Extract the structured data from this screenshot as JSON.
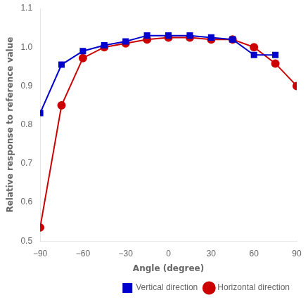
{
  "chart_data": {
    "type": "line",
    "xlabel": "Angle (degree)",
    "ylabel": "Relative response to reference value",
    "series": [
      {
        "name": "Vertical direction",
        "color": "#0000cc",
        "marker": "square",
        "x": [
          -90,
          -75,
          -60,
          -45,
          -30,
          -15,
          0,
          15,
          30,
          45,
          60,
          75
        ],
        "values": [
          0.83,
          0.955,
          0.99,
          1.005,
          1.015,
          1.03,
          1.03,
          1.03,
          1.025,
          1.02,
          0.98,
          0.98
        ]
      },
      {
        "name": "Horizontal direction",
        "color": "#cc0000",
        "marker": "circle",
        "x": [
          -90,
          -75,
          -60,
          -45,
          -30,
          -15,
          0,
          15,
          30,
          45,
          60,
          75,
          90
        ],
        "values": [
          0.535,
          0.85,
          0.972,
          1.0,
          1.01,
          1.02,
          1.025,
          1.025,
          1.02,
          1.02,
          1.0,
          0.958,
          0.9
        ]
      }
    ],
    "xlim": [
      -90,
      90
    ],
    "ylim": [
      0.5,
      1.1
    ],
    "xticks": [
      {
        "value": -90,
        "label": "−90"
      },
      {
        "value": -60,
        "label": "−60"
      },
      {
        "value": -30,
        "label": "−30"
      },
      0,
      30,
      60,
      90
    ],
    "yticks": [
      0.5,
      0.6,
      0.7,
      0.8,
      0.9,
      {
        "value": 1.0,
        "label": "1.0"
      },
      1.1
    ],
    "grid": false,
    "legend": "lower right"
  }
}
